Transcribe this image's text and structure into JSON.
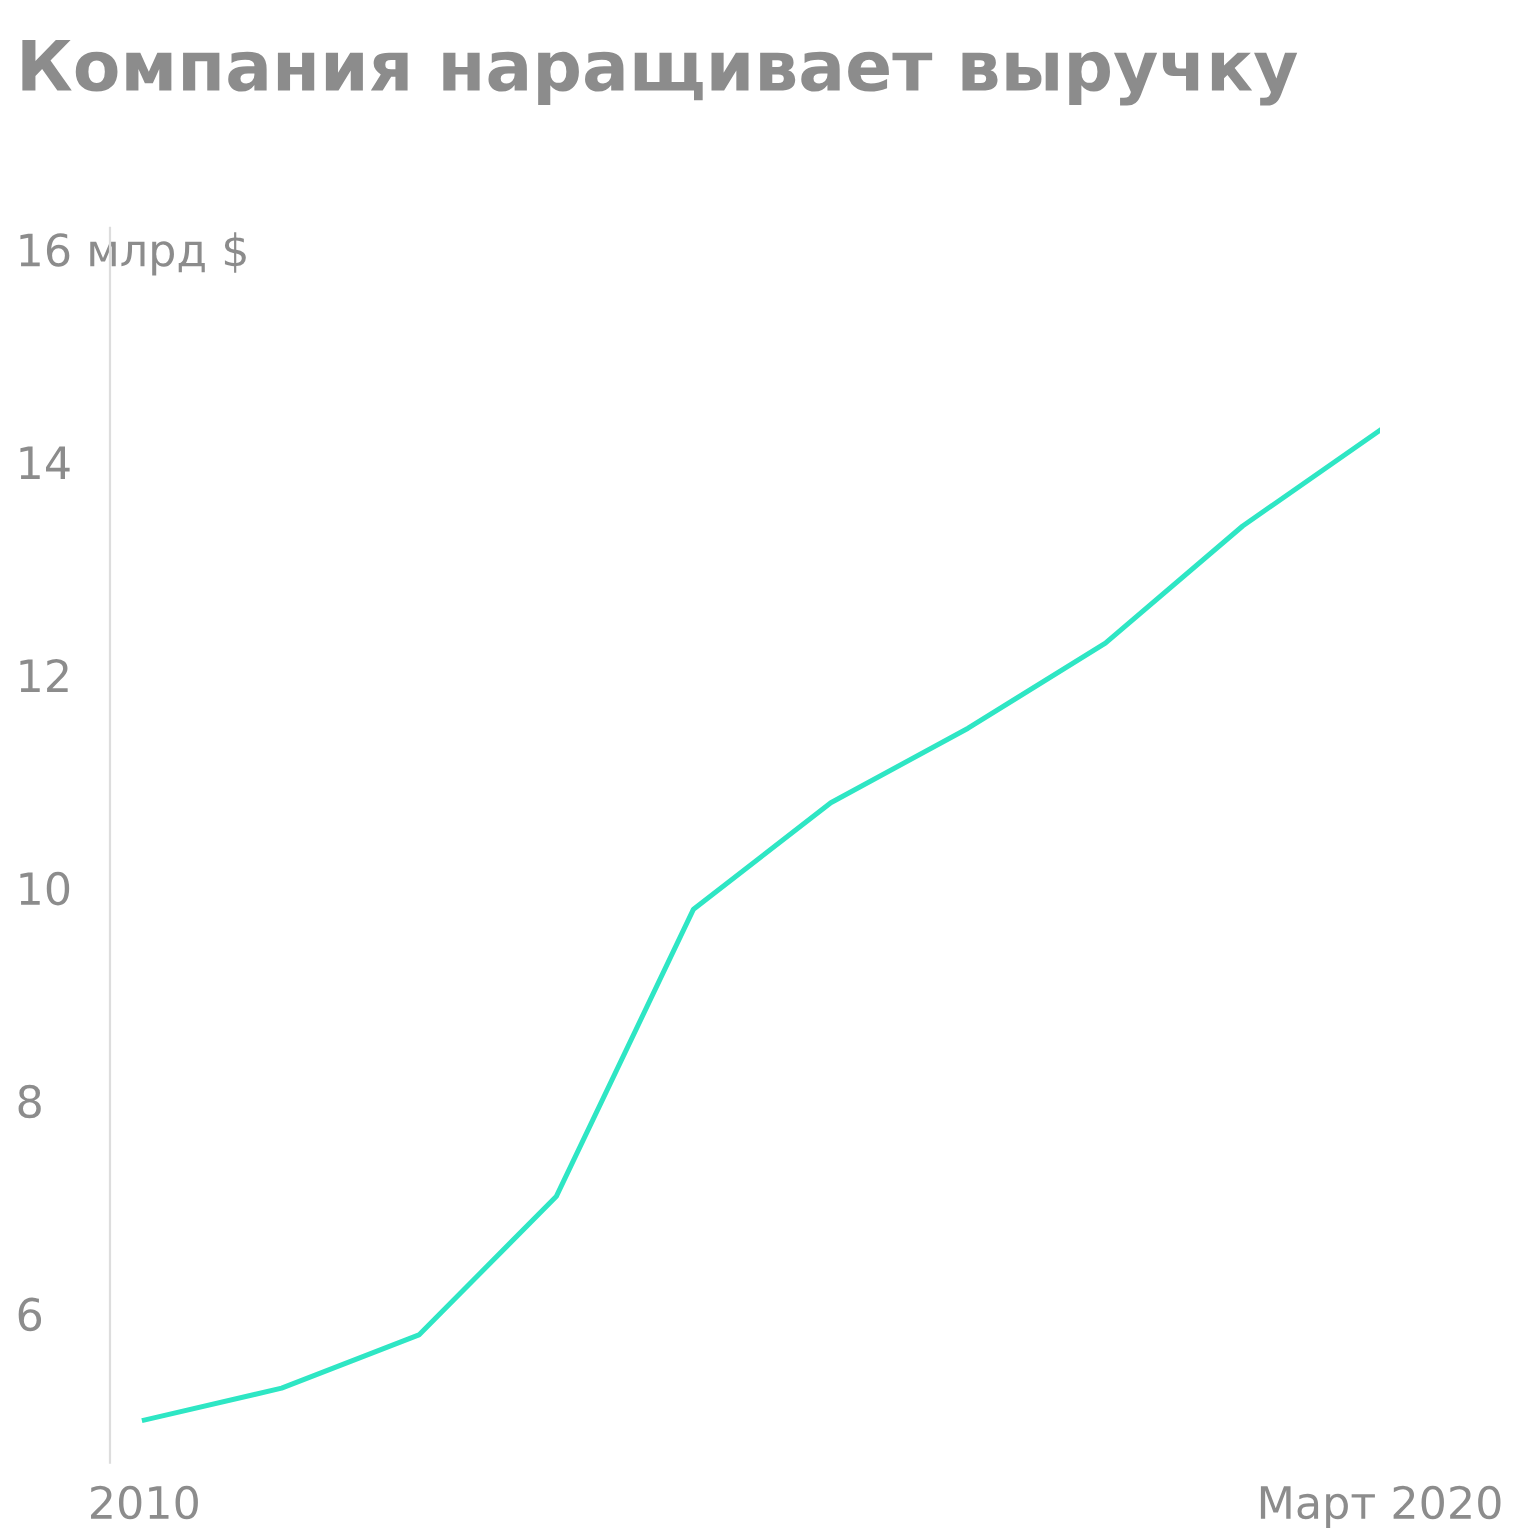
{
  "chart_data": {
    "type": "line",
    "title": "Компания наращивает выручку",
    "categories": [
      "2010",
      null,
      null,
      null,
      null,
      null,
      null,
      null,
      null,
      "Март 2020"
    ],
    "series": [
      {
        "color": "#2ee6c4",
        "values": [
          5.0,
          5.3,
          5.8,
          7.1,
          9.8,
          10.8,
          11.5,
          12.3,
          13.4,
          14.3
        ]
      }
    ],
    "ylim": [
      4.6,
      16.2
    ],
    "yticks": [
      6,
      8,
      10,
      12,
      14,
      {
        "value": 16,
        "label": "16 млрд $"
      }
    ],
    "grid": false,
    "marker": "none",
    "line_style": "solid"
  }
}
